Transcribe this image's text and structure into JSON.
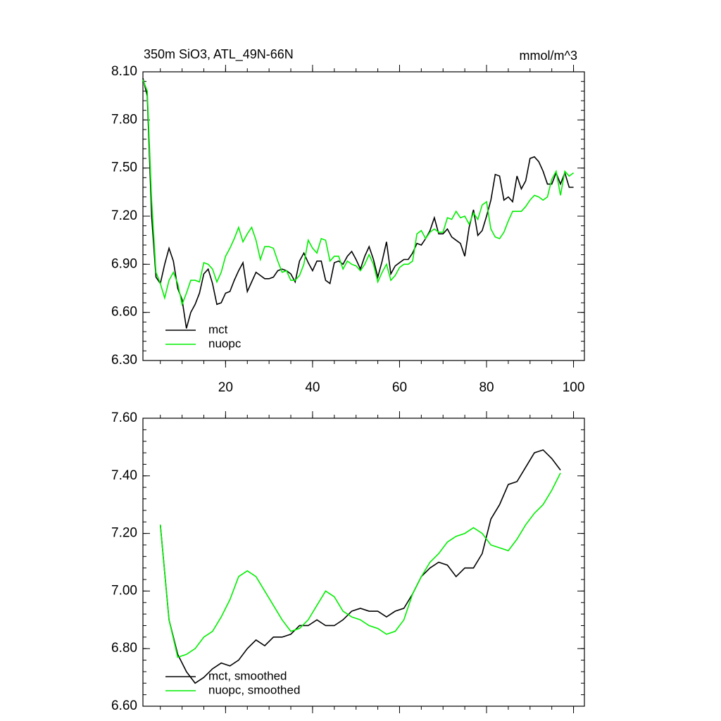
{
  "chart_data": [
    {
      "type": "line",
      "title": "350m SiO3, ATL_49N-66N",
      "units": "mmol/m^3",
      "x": [
        1,
        2,
        3,
        4,
        5,
        6,
        7,
        8,
        9,
        10,
        11,
        12,
        13,
        14,
        15,
        16,
        17,
        18,
        19,
        20,
        21,
        22,
        23,
        24,
        25,
        26,
        27,
        28,
        29,
        30,
        31,
        32,
        33,
        34,
        35,
        36,
        37,
        38,
        39,
        40,
        41,
        42,
        43,
        44,
        45,
        46,
        47,
        48,
        49,
        50,
        51,
        52,
        53,
        54,
        55,
        56,
        57,
        58,
        59,
        60,
        61,
        62,
        63,
        64,
        65,
        66,
        67,
        68,
        69,
        70,
        71,
        72,
        73,
        74,
        75,
        76,
        77,
        78,
        79,
        80,
        81,
        82,
        83,
        84,
        85,
        86,
        87,
        88,
        89,
        90,
        91,
        92,
        93,
        94,
        95,
        96,
        97,
        98,
        99,
        100
      ],
      "series": [
        {
          "name": "mct",
          "color": "#000000",
          "values": [
            8.06,
            7.95,
            7.2,
            6.82,
            6.78,
            6.9,
            7.0,
            6.92,
            6.75,
            6.68,
            6.5,
            6.6,
            6.65,
            6.72,
            6.84,
            6.87,
            6.78,
            6.65,
            6.66,
            6.72,
            6.73,
            6.8,
            6.86,
            6.91,
            6.73,
            6.79,
            6.85,
            6.83,
            6.81,
            6.81,
            6.82,
            6.86,
            6.87,
            6.86,
            6.84,
            6.79,
            6.92,
            6.97,
            6.91,
            6.86,
            6.92,
            6.92,
            6.8,
            6.78,
            6.91,
            6.92,
            6.9,
            6.95,
            6.98,
            6.93,
            6.87,
            6.95,
            7.01,
            6.93,
            6.82,
            6.92,
            7.04,
            6.84,
            6.89,
            6.91,
            6.93,
            6.93,
            6.97,
            7.03,
            7.02,
            7.06,
            7.11,
            7.19,
            7.09,
            7.09,
            7.12,
            7.07,
            7.05,
            7.03,
            6.95,
            7.13,
            7.24,
            7.08,
            7.11,
            7.2,
            7.3,
            7.46,
            7.45,
            7.3,
            7.32,
            7.29,
            7.45,
            7.37,
            7.42,
            7.56,
            7.57,
            7.54,
            7.48,
            7.4,
            7.4,
            7.47,
            7.4,
            7.47,
            7.38,
            7.38
          ]
        },
        {
          "name": "nuopc",
          "color": "#00ee00",
          "values": [
            8.05,
            7.98,
            7.3,
            6.85,
            6.78,
            6.69,
            6.8,
            6.85,
            6.78,
            6.65,
            6.72,
            6.8,
            6.8,
            6.79,
            6.91,
            6.9,
            6.87,
            6.79,
            6.85,
            6.95,
            7.0,
            7.06,
            7.13,
            7.04,
            7.09,
            7.13,
            7.05,
            6.93,
            7.01,
            7.01,
            7.0,
            6.92,
            6.85,
            6.86,
            6.8,
            6.8,
            6.83,
            6.9,
            7.05,
            7.0,
            6.97,
            7.06,
            7.05,
            6.92,
            6.95,
            6.95,
            6.87,
            6.92,
            6.9,
            6.89,
            6.86,
            6.9,
            6.96,
            6.9,
            6.79,
            6.85,
            6.9,
            6.8,
            6.83,
            6.88,
            6.9,
            6.9,
            6.92,
            7.09,
            7.11,
            7.06,
            7.1,
            7.12,
            7.1,
            7.1,
            7.19,
            7.18,
            7.23,
            7.19,
            7.2,
            7.15,
            7.22,
            7.18,
            7.27,
            7.29,
            7.12,
            7.07,
            7.06,
            7.1,
            7.17,
            7.23,
            7.23,
            7.23,
            7.26,
            7.3,
            7.33,
            7.32,
            7.3,
            7.32,
            7.43,
            7.48,
            7.33,
            7.48,
            7.45,
            7.47
          ]
        }
      ],
      "xlim": [
        1,
        102.5
      ],
      "xticks": [
        20,
        40,
        60,
        80,
        100
      ],
      "ylim": [
        6.3,
        8.1
      ],
      "yticks": [
        {
          "value": 6.3,
          "label": "6.30"
        },
        {
          "value": 6.6,
          "label": "6.60"
        },
        {
          "value": 6.9,
          "label": "6.90"
        },
        {
          "value": 7.2,
          "label": "7.20"
        },
        {
          "value": 7.5,
          "label": "7.50"
        },
        {
          "value": 7.8,
          "label": "7.80"
        },
        {
          "value": 8.1,
          "label": "8.10"
        }
      ]
    },
    {
      "type": "line",
      "x": [
        5,
        7,
        9,
        11,
        13,
        15,
        17,
        19,
        21,
        23,
        25,
        27,
        29,
        31,
        33,
        35,
        37,
        39,
        41,
        43,
        45,
        47,
        49,
        51,
        53,
        55,
        57,
        59,
        61,
        63,
        65,
        67,
        69,
        71,
        73,
        75,
        77,
        79,
        81,
        83,
        85,
        87,
        89,
        91,
        93,
        95,
        97
      ],
      "series": [
        {
          "name": "mct, smoothed",
          "color": "#000000",
          "values": [
            7.23,
            6.9,
            6.78,
            6.72,
            6.68,
            6.7,
            6.73,
            6.75,
            6.74,
            6.76,
            6.8,
            6.83,
            6.81,
            6.84,
            6.84,
            6.85,
            6.88,
            6.88,
            6.9,
            6.88,
            6.88,
            6.9,
            6.93,
            6.94,
            6.93,
            6.93,
            6.91,
            6.93,
            6.94,
            6.99,
            7.05,
            7.08,
            7.1,
            7.09,
            7.05,
            7.08,
            7.08,
            7.13,
            7.25,
            7.3,
            7.37,
            7.38,
            7.43,
            7.48,
            7.49,
            7.46,
            7.42
          ]
        },
        {
          "name": "nuopc, smoothed",
          "color": "#00ee00",
          "values": [
            7.23,
            6.9,
            6.77,
            6.78,
            6.8,
            6.84,
            6.86,
            6.91,
            6.97,
            7.05,
            7.07,
            7.05,
            7.0,
            6.95,
            6.9,
            6.86,
            6.87,
            6.9,
            6.95,
            7.0,
            6.98,
            6.93,
            6.91,
            6.9,
            6.88,
            6.87,
            6.85,
            6.86,
            6.9,
            6.99,
            7.05,
            7.1,
            7.13,
            7.17,
            7.19,
            7.2,
            7.22,
            7.2,
            7.16,
            7.15,
            7.14,
            7.18,
            7.23,
            7.27,
            7.3,
            7.35,
            7.41
          ]
        }
      ],
      "xlim": [
        1,
        102.5
      ],
      "xticks": [
        20,
        40,
        60,
        80,
        100
      ],
      "ylim": [
        6.6,
        7.6
      ],
      "yticks": [
        {
          "value": 6.6,
          "label": "6.60"
        },
        {
          "value": 6.8,
          "label": "6.80"
        },
        {
          "value": 7.0,
          "label": "7.00"
        },
        {
          "value": 7.2,
          "label": "7.20"
        },
        {
          "value": 7.4,
          "label": "7.40"
        },
        {
          "value": 7.6,
          "label": "7.60"
        }
      ]
    }
  ]
}
